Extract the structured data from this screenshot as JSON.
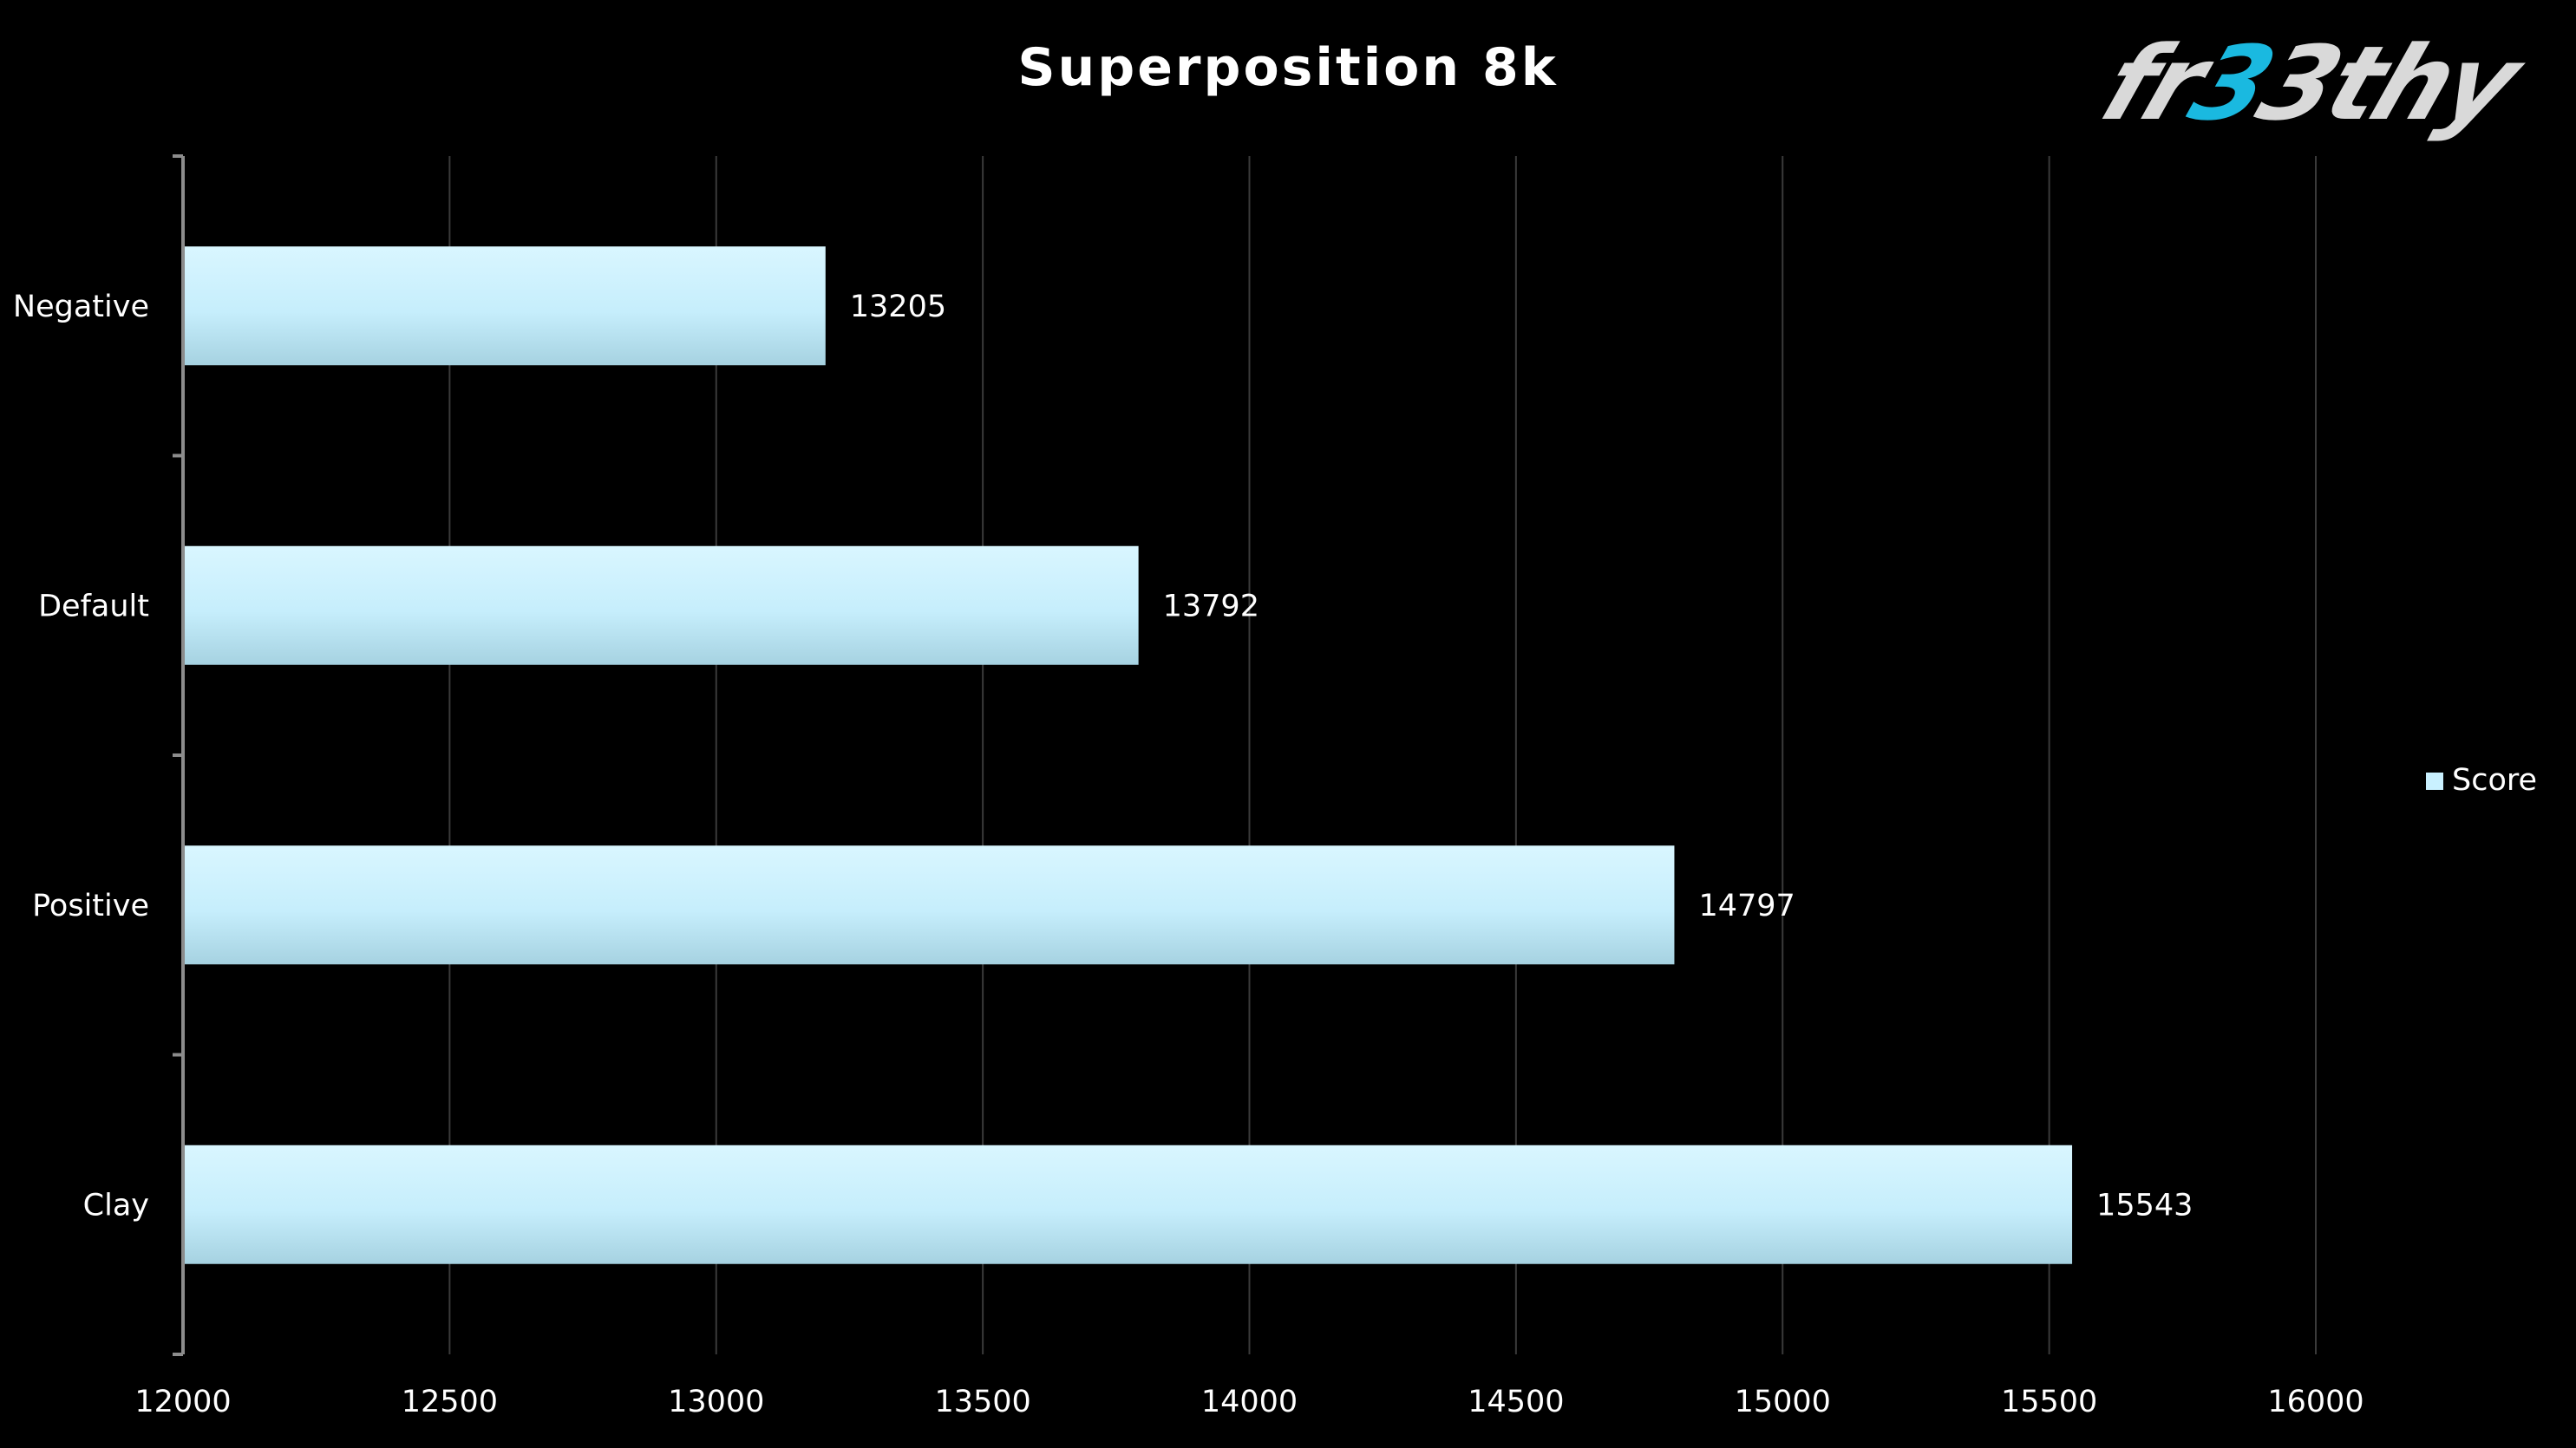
{
  "chart_data": {
    "type": "bar",
    "orientation": "horizontal",
    "title": "Superposition 8k",
    "categories": [
      "Negative",
      "Default",
      "Positive",
      "Clay"
    ],
    "series": [
      {
        "name": "Score",
        "values": [
          13205,
          13792,
          14797,
          15543
        ],
        "color": "#c9f1ff"
      }
    ],
    "xlim": [
      12000,
      16000
    ],
    "x_ticks": [
      "12000",
      "12500",
      "13000",
      "13500",
      "14000",
      "14500",
      "15000",
      "15500",
      "16000"
    ],
    "data_labels": [
      "13205",
      "13792",
      "14797",
      "15543"
    ],
    "grid": "vertical",
    "legend_position": "right",
    "colors": {
      "background": "#000000",
      "text": "#ffffff",
      "gridline": "#3a3a3a",
      "axis": "#8c8c8c",
      "bar_top": "#d6f5ff",
      "bar_bottom": "#a8d4e3"
    }
  },
  "logo": {
    "text": "fr33thy",
    "primary_color": "#d9d9d9",
    "accent_color": "#1ab9e0"
  }
}
